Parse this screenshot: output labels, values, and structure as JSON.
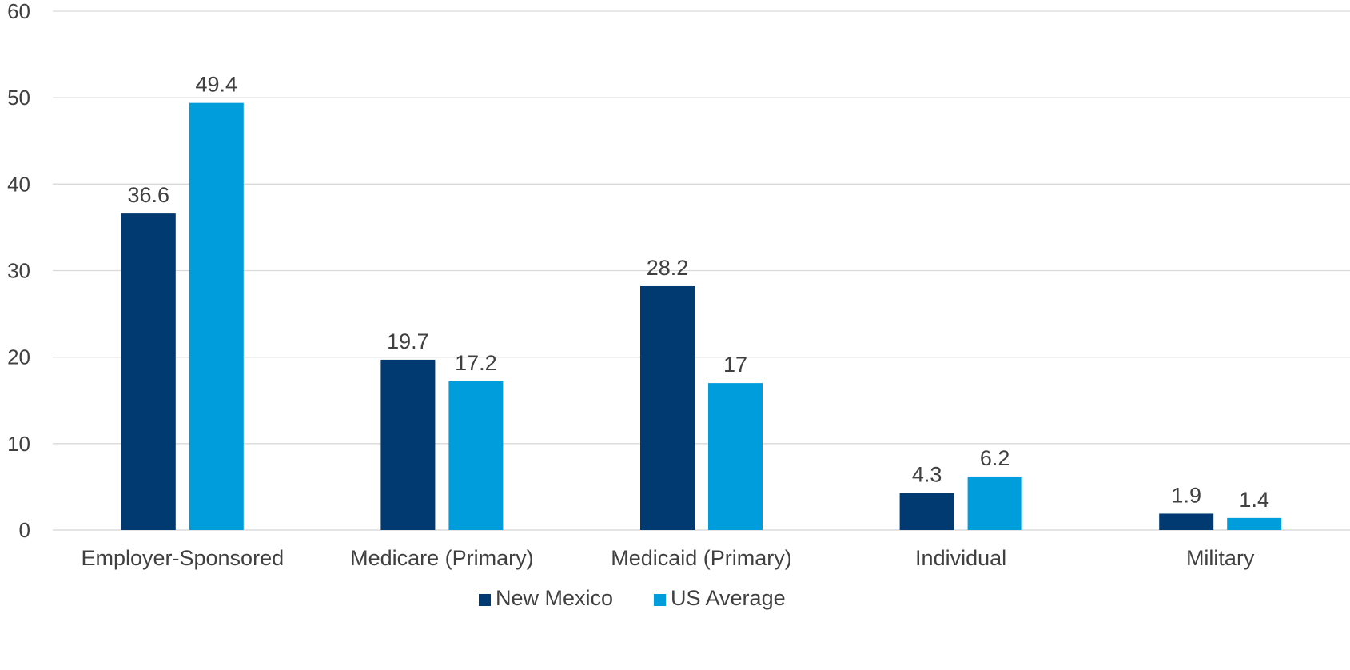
{
  "chart_data": {
    "type": "bar",
    "categories": [
      "Employer-Sponsored",
      "Medicare (Primary)",
      "Medicaid (Primary)",
      "Individual",
      "Military"
    ],
    "series": [
      {
        "name": "New Mexico",
        "values": [
          36.6,
          19.7,
          28.2,
          4.3,
          1.9
        ],
        "labels": [
          "36.6",
          "19.7",
          "28.2",
          "4.3",
          "1.9"
        ],
        "color": "#003A70"
      },
      {
        "name": "US Average",
        "values": [
          49.4,
          17.2,
          17,
          6.2,
          1.4
        ],
        "labels": [
          "49.4",
          "17.2",
          "17",
          "6.2",
          "1.4"
        ],
        "color": "#009DDC"
      }
    ],
    "y_ticks": [
      "0",
      "10",
      "20",
      "30",
      "40",
      "50",
      "60"
    ],
    "ylim": [
      0,
      60
    ],
    "grid": true,
    "gridline_color": "#D9D9D9",
    "text_color": "#404040",
    "legend_position": "bottom"
  }
}
